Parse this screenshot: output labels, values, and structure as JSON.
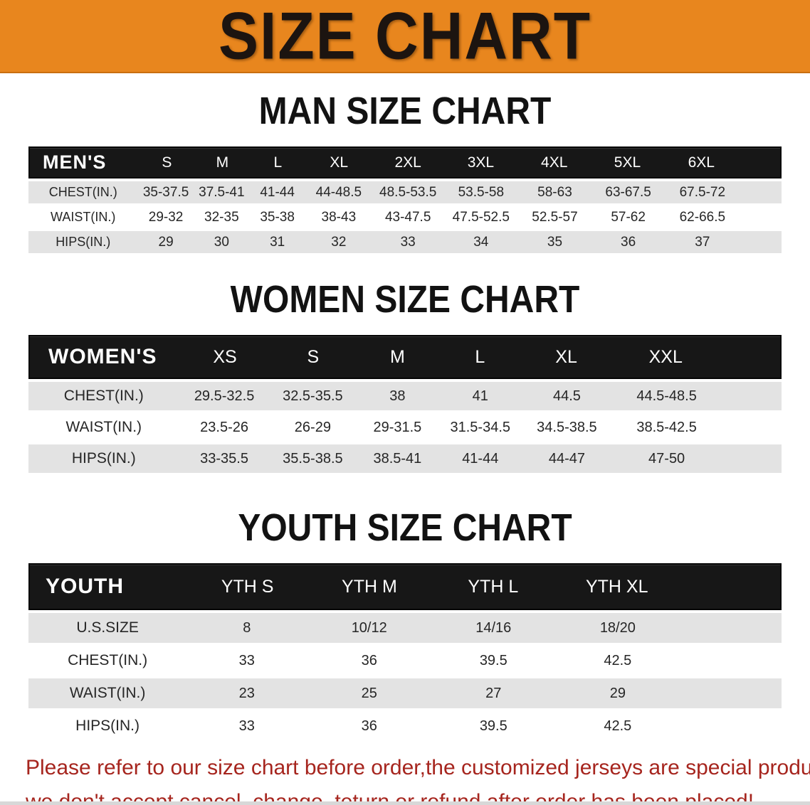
{
  "banner": {
    "title": "SIZE CHART",
    "bg_color": "#E8861E",
    "text_color": "#1C1410"
  },
  "colors": {
    "header_bar": "#171717",
    "row_grey": "#E3E3E3",
    "row_white": "#FFFFFF",
    "disclaimer_red": "#A6251E"
  },
  "sections": [
    {
      "heading": "MAN SIZE CHART",
      "table": {
        "label": "MEN'S",
        "columns": [
          "S",
          "M",
          "L",
          "XL",
          "2XL",
          "3XL",
          "4XL",
          "5XL",
          "6XL"
        ],
        "rows": [
          {
            "label": "CHEST(IN.)",
            "values": [
              "35-37.5",
              "37.5-41",
              "41-44",
              "44-48.5",
              "48.5-53.5",
              "53.5-58",
              "58-63",
              "63-67.5",
              "67.5-72"
            ]
          },
          {
            "label": "WAIST(IN.)",
            "values": [
              "29-32",
              "32-35",
              "35-38",
              "38-43",
              "43-47.5",
              "47.5-52.5",
              "52.5-57",
              "57-62",
              "62-66.5"
            ]
          },
          {
            "label": "HIPS(IN.)",
            "values": [
              "29",
              "30",
              "31",
              "32",
              "33",
              "34",
              "35",
              "36",
              "37"
            ]
          }
        ]
      }
    },
    {
      "heading": "WOMEN SIZE CHART",
      "table": {
        "label": "WOMEN'S",
        "columns": [
          "XS",
          "S",
          "M",
          "L",
          "XL",
          "XXL"
        ],
        "rows": [
          {
            "label": "CHEST(IN.)",
            "values": [
              "29.5-32.5",
              "32.5-35.5",
              "38",
              "41",
              "44.5",
              "44.5-48.5"
            ]
          },
          {
            "label": "WAIST(IN.)",
            "values": [
              "23.5-26",
              "26-29",
              "29-31.5",
              "31.5-34.5",
              "34.5-38.5",
              "38.5-42.5"
            ]
          },
          {
            "label": "HIPS(IN.)",
            "values": [
              "33-35.5",
              "35.5-38.5",
              "38.5-41",
              "41-44",
              "44-47",
              "47-50"
            ]
          }
        ]
      }
    },
    {
      "heading": "YOUTH SIZE CHART",
      "table": {
        "label": "YOUTH",
        "columns": [
          "YTH S",
          "YTH M",
          "YTH L",
          "YTH XL"
        ],
        "rows": [
          {
            "label": "U.S.SIZE",
            "values": [
              "8",
              "10/12",
              "14/16",
              "18/20"
            ]
          },
          {
            "label": "CHEST(IN.)",
            "values": [
              "33",
              "36",
              "39.5",
              "42.5"
            ]
          },
          {
            "label": "WAIST(IN.)",
            "values": [
              "23",
              "25",
              "27",
              "29"
            ]
          },
          {
            "label": "HIPS(IN.)",
            "values": [
              "33",
              "36",
              "39.5",
              "42.5"
            ]
          }
        ]
      }
    }
  ],
  "disclaimer": {
    "line1": "Please refer to our size chart before order,the customized jerseys are special products,",
    "line2": "we don't accept cancel, change, teturn or refund after order has been placed!"
  }
}
